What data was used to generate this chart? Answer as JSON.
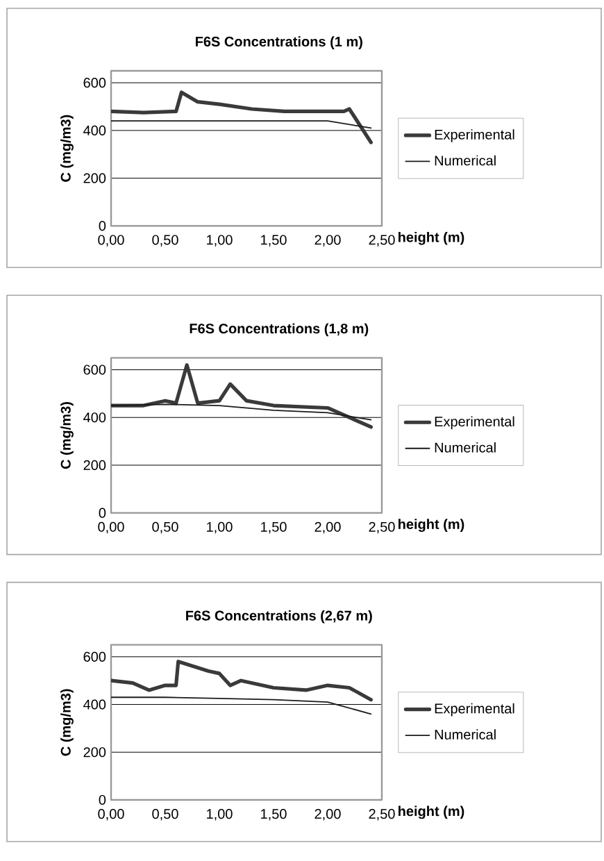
{
  "chart_data": [
    {
      "type": "line",
      "title": "F6S Concentrations (1 m)",
      "xlabel": "height (m)",
      "ylabel": "C (mg/m3)",
      "xlim": [
        0,
        2.5
      ],
      "ylim": [
        0,
        650
      ],
      "xticks": [
        {
          "value": 0,
          "label": "0,00"
        },
        {
          "value": 0.5,
          "label": "0,50"
        },
        {
          "value": 1,
          "label": "1,00"
        },
        {
          "value": 1.5,
          "label": "1,50"
        },
        {
          "value": 2,
          "label": "2,00"
        },
        {
          "value": 2.5,
          "label": "2,50"
        }
      ],
      "yticks": [
        0,
        200,
        400,
        600
      ],
      "grid": "y",
      "legend": "right",
      "marker": "none",
      "series": [
        {
          "name": "Experimental",
          "color": "#3a3a3a",
          "x": [
            0,
            0.3,
            0.6,
            0.65,
            0.8,
            1.0,
            1.3,
            1.6,
            2.0,
            2.15,
            2.2,
            2.3,
            2.4
          ],
          "values": [
            480,
            475,
            480,
            560,
            520,
            510,
            490,
            480,
            480,
            480,
            490,
            420,
            350
          ]
        },
        {
          "name": "Numerical",
          "color": "#1a1a1a",
          "x": [
            0,
            0.5,
            1.0,
            1.5,
            2.0,
            2.4
          ],
          "values": [
            440,
            440,
            440,
            440,
            440,
            410
          ]
        }
      ]
    },
    {
      "type": "line",
      "title": "F6S Concentrations (1,8 m)",
      "xlabel": "height (m)",
      "ylabel": "C (mg/m3)",
      "xlim": [
        0,
        2.5
      ],
      "ylim": [
        0,
        650
      ],
      "xticks": [
        {
          "value": 0,
          "label": "0,00"
        },
        {
          "value": 0.5,
          "label": "0,50"
        },
        {
          "value": 1,
          "label": "1,00"
        },
        {
          "value": 1.5,
          "label": "1,50"
        },
        {
          "value": 2,
          "label": "2,00"
        },
        {
          "value": 2.5,
          "label": "2,50"
        }
      ],
      "yticks": [
        0,
        200,
        400,
        600
      ],
      "grid": "y",
      "legend": "right",
      "marker": "none",
      "series": [
        {
          "name": "Experimental",
          "color": "#3a3a3a",
          "x": [
            0,
            0.3,
            0.5,
            0.6,
            0.7,
            0.8,
            1.0,
            1.1,
            1.25,
            1.5,
            2.0,
            2.2,
            2.4
          ],
          "values": [
            450,
            450,
            470,
            460,
            620,
            460,
            470,
            540,
            470,
            450,
            440,
            400,
            360
          ]
        },
        {
          "name": "Numerical",
          "color": "#1a1a1a",
          "x": [
            0,
            0.5,
            1.0,
            1.5,
            2.0,
            2.4
          ],
          "values": [
            450,
            455,
            450,
            430,
            420,
            390
          ]
        }
      ]
    },
    {
      "type": "line",
      "title": "F6S Concentrations (2,67 m)",
      "xlabel": "height (m)",
      "ylabel": "C (mg/m3)",
      "xlim": [
        0,
        2.5
      ],
      "ylim": [
        0,
        650
      ],
      "xticks": [
        {
          "value": 0,
          "label": "0,00"
        },
        {
          "value": 0.5,
          "label": "0,50"
        },
        {
          "value": 1,
          "label": "1,00"
        },
        {
          "value": 1.5,
          "label": "1,50"
        },
        {
          "value": 2,
          "label": "2,00"
        },
        {
          "value": 2.5,
          "label": "2,50"
        }
      ],
      "yticks": [
        0,
        200,
        400,
        600
      ],
      "grid": "y",
      "legend": "right",
      "marker": "none",
      "series": [
        {
          "name": "Experimental",
          "color": "#3a3a3a",
          "x": [
            0,
            0.2,
            0.35,
            0.5,
            0.6,
            0.62,
            0.9,
            1.0,
            1.1,
            1.2,
            1.5,
            1.8,
            2.0,
            2.2,
            2.4
          ],
          "values": [
            500,
            490,
            460,
            480,
            480,
            580,
            540,
            530,
            480,
            500,
            470,
            460,
            480,
            470,
            420
          ]
        },
        {
          "name": "Numerical",
          "color": "#1a1a1a",
          "x": [
            0,
            0.5,
            1.0,
            1.5,
            2.0,
            2.4
          ],
          "values": [
            430,
            430,
            425,
            420,
            410,
            360
          ]
        }
      ]
    }
  ]
}
